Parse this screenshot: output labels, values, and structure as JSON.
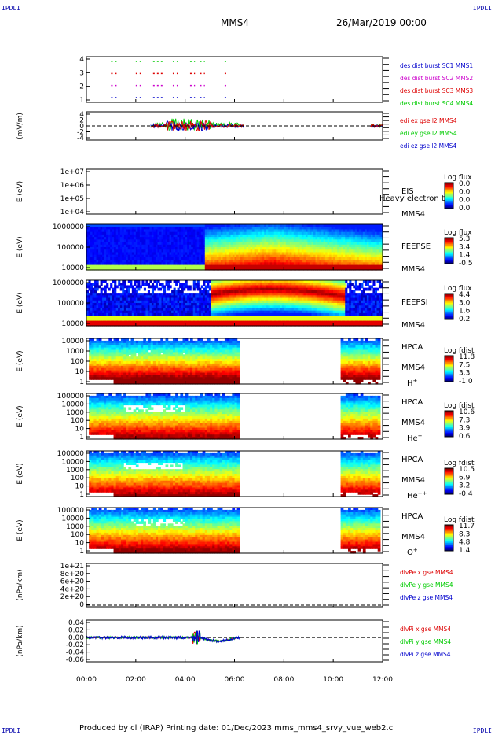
{
  "header": {
    "corner": "IPDLI",
    "title": "MMS4",
    "date": "26/Mar/2019 00:00"
  },
  "footer": {
    "text": "Produced by cl (IRAP)   Printing date: 01/Dec/2023   mms_mms4_srvy_vue_web2.cl"
  },
  "x_axis": {
    "ticks": [
      "00:00",
      "02:00",
      "04:00",
      "06:00",
      "08:00",
      "10:00",
      "12:00"
    ],
    "range_hours": [
      0,
      12
    ]
  },
  "colors": {
    "red": "#dd0000",
    "green": "#00cc00",
    "blue": "#0000cc",
    "magenta": "#cc00cc"
  },
  "chart_data": [
    {
      "type": "scatter",
      "ylabels": [
        "4",
        "3",
        "2",
        "1"
      ],
      "legend": [
        {
          "text": "des dist burst SC1 MMS1",
          "color": "#0000cc"
        },
        {
          "text": "des dist burst SC2 MMS2",
          "color": "#cc00cc"
        },
        {
          "text": "des dist burst SC3 MMS3",
          "color": "#dd0000"
        },
        {
          "text": "des dist burst SC4 MMS4",
          "color": "#00cc00"
        }
      ]
    },
    {
      "type": "line",
      "ylabel": "(mV/m)",
      "ylabels": [
        "4",
        "2",
        "0",
        "-2",
        "-4"
      ],
      "ylim": [
        -4,
        4
      ],
      "legend": [
        {
          "text": "edi ex gse l2 MMS4",
          "color": "#dd0000"
        },
        {
          "text": "edi ey gse l2 MMS4",
          "color": "#00cc00"
        },
        {
          "text": "edi ez gse l2 MMS4",
          "color": "#0000cc"
        }
      ]
    },
    {
      "type": "heatmap",
      "ylabel": "E (eV)",
      "ylabels": [
        "1e+07",
        "1e+06",
        "1e+05",
        "1e+04"
      ],
      "side": [
        "EIS",
        "MMS4"
      ],
      "overlay": "Heavy electron to",
      "cbar": {
        "title": "Log flux",
        "ticks": [
          "0.0",
          "0.0",
          "0.0",
          "0.0"
        ]
      }
    },
    {
      "type": "heatmap",
      "ylabel": "E (eV)",
      "ylabels": [
        "1000000",
        "100000",
        "10000"
      ],
      "side": [
        "FEEPSE",
        "MMS4"
      ],
      "cbar": {
        "title": "Log flux",
        "ticks": [
          "5.3",
          "3.4",
          "1.4",
          "-0.5"
        ]
      }
    },
    {
      "type": "heatmap",
      "ylabel": "E (eV)",
      "ylabels": [
        "1000000",
        "100000",
        "10000"
      ],
      "side": [
        "FEEPSI",
        "MMS4"
      ],
      "cbar": {
        "title": "Log flux",
        "ticks": [
          "4.4",
          "3.0",
          "1.6",
          "0.2"
        ]
      }
    },
    {
      "type": "heatmap",
      "ylabel": "E (eV)",
      "ylabels": [
        "10000",
        "1000",
        "100",
        "10",
        "1"
      ],
      "side": [
        "HPCA",
        "MMS4"
      ],
      "species": "H",
      "sup": "+",
      "cbar": {
        "title": "Log fdist",
        "ticks": [
          "11.8",
          "7.5",
          "3.3",
          "-1.0"
        ]
      }
    },
    {
      "type": "heatmap",
      "ylabel": "E (eV)",
      "ylabels": [
        "100000",
        "10000",
        "1000",
        "100",
        "10",
        "1"
      ],
      "side": [
        "HPCA",
        "MMS4"
      ],
      "species": "He",
      "sup": "+",
      "cbar": {
        "title": "Log fdist",
        "ticks": [
          "10.6",
          "7.3",
          "3.9",
          "0.6"
        ]
      }
    },
    {
      "type": "heatmap",
      "ylabel": "E (eV)",
      "ylabels": [
        "100000",
        "10000",
        "1000",
        "100",
        "10",
        "1"
      ],
      "side": [
        "HPCA",
        "MMS4"
      ],
      "species": "He",
      "sup": "++",
      "cbar": {
        "title": "Log fdist",
        "ticks": [
          "10.5",
          "6.9",
          "3.2",
          "-0.4"
        ]
      }
    },
    {
      "type": "heatmap",
      "ylabel": "E (eV)",
      "ylabels": [
        "100000",
        "10000",
        "1000",
        "100",
        "10",
        "1"
      ],
      "side": [
        "HPCA",
        "MMS4"
      ],
      "species": "O",
      "sup": "+",
      "cbar": {
        "title": "Log fdist",
        "ticks": [
          "11.7",
          "8.3",
          "4.8",
          "1.4"
        ]
      }
    },
    {
      "type": "line",
      "ylabel": "(nPa/km)",
      "ylabels": [
        "1e+21",
        "8e+20",
        "6e+20",
        "4e+20",
        "2e+20",
        "0"
      ],
      "legend": [
        {
          "text": "dlvPe x gse MMS4",
          "color": "#dd0000"
        },
        {
          "text": "dlvPe y gse MMS4",
          "color": "#00cc00"
        },
        {
          "text": "dlvPe z gse MMS4",
          "color": "#0000cc"
        }
      ]
    },
    {
      "type": "line",
      "ylabel": "(nPa/km)",
      "ylabels": [
        "0.04",
        "0.02",
        "0.00",
        "-0.02",
        "-0.04",
        "-0.06"
      ],
      "ylim": [
        -0.07,
        0.05
      ],
      "legend": [
        {
          "text": "dlvPi x gse MMS4",
          "color": "#dd0000"
        },
        {
          "text": "dlvPi y gse MMS4",
          "color": "#00cc00"
        },
        {
          "text": "dlvPi z gse MMS4",
          "color": "#0000cc"
        }
      ]
    }
  ]
}
